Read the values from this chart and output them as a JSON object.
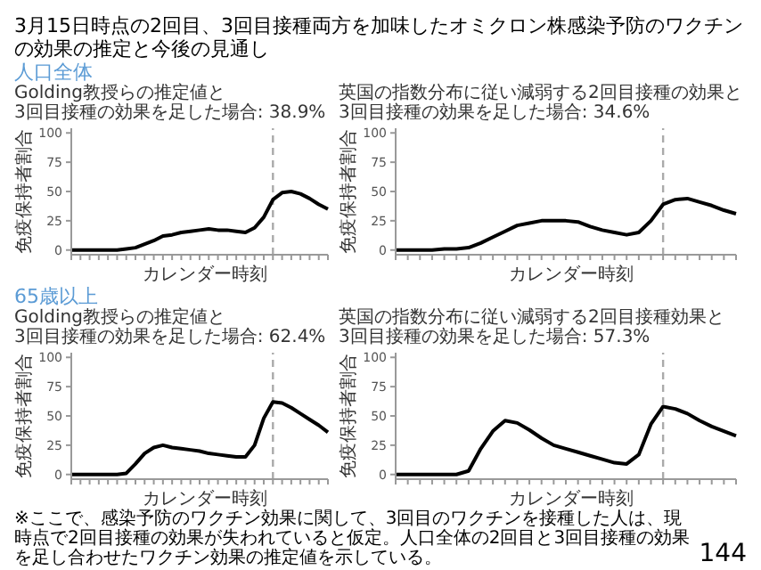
{
  "chart_data": [
    {
      "type": "other",
      "title": "3月15日時点の2回目、3回目接種両方を加味したオミクロン株感染予防のワクチンの効果の推定と今後の見通し",
      "annotations": [
        "人口全体",
        "65歳以上",
        "※ここで、感染予防のワクチン効果に関して、3回目のワクチンを接種した人は、現時点で2回目接種の効果が失われていると仮定。人口全体の2回目と3回目接種の効果を足し合わせたワクチン効果の推定値を示している。",
        "144"
      ]
    },
    {
      "type": "line",
      "title": "Golding教授らの推定値と\n3回目接種の効果を足した場合: 38.9%",
      "xlabel": "カレンダー時刻",
      "ylabel": "免疫保持者割合",
      "ylim": [
        -4,
        104
      ],
      "yticks": [
        0,
        25,
        50,
        75,
        100
      ],
      "categories": [
        null,
        null,
        null,
        null,
        null,
        null,
        null,
        null,
        null,
        null,
        null,
        null,
        null,
        null,
        null,
        null,
        null,
        null,
        null,
        null,
        null,
        null,
        null,
        null,
        null,
        null,
        null,
        null,
        null
      ],
      "series": [
        {
          "color": "#000000",
          "values": [
            0,
            0,
            0,
            0,
            0,
            0,
            1,
            2,
            5,
            8,
            12,
            13,
            15,
            16,
            17,
            18,
            17,
            17,
            16,
            15,
            19,
            28,
            43,
            49,
            50,
            48,
            44,
            39,
            35
          ]
        }
      ]
    },
    {
      "type": "line",
      "title": "英国の指数分布に従い減弱する2回目接種の効果と\n3回目接種の効果を足した場合: 34.6%",
      "xlabel": "カレンダー時刻",
      "ylabel": "免疫保持者割合",
      "ylim": [
        -4,
        104
      ],
      "yticks": [
        0,
        25,
        50,
        75,
        100
      ],
      "categories": [
        null,
        null,
        null,
        null,
        null,
        null,
        null,
        null,
        null,
        null,
        null,
        null,
        null,
        null,
        null,
        null,
        null,
        null,
        null,
        null,
        null,
        null,
        null,
        null,
        null,
        null,
        null,
        null,
        null
      ],
      "series": [
        {
          "color": "#000000",
          "values": [
            0,
            0,
            0,
            0,
            1,
            1,
            2,
            6,
            11,
            16,
            21,
            23,
            25,
            25,
            25,
            24,
            20,
            17,
            15,
            13,
            15,
            25,
            39,
            43,
            44,
            41,
            38,
            34,
            31
          ]
        }
      ]
    },
    {
      "type": "line",
      "title": "Golding教授らの推定値と\n3回目接種の効果を足した場合: 62.4%",
      "xlabel": "カレンダー時刻",
      "ylabel": "免疫保持者割合",
      "ylim": [
        -4,
        104
      ],
      "yticks": [
        0,
        25,
        50,
        75,
        100
      ],
      "categories": [
        null,
        null,
        null,
        null,
        null,
        null,
        null,
        null,
        null,
        null,
        null,
        null,
        null,
        null,
        null,
        null,
        null,
        null,
        null,
        null,
        null,
        null,
        null,
        null,
        null,
        null,
        null,
        null,
        null
      ],
      "series": [
        {
          "color": "#000000",
          "values": [
            0,
            0,
            0,
            0,
            0,
            0,
            1,
            9,
            18,
            23,
            25,
            23,
            22,
            21,
            20,
            18,
            17,
            16,
            15,
            15,
            25,
            48,
            62,
            61,
            57,
            52,
            47,
            42,
            36
          ]
        }
      ]
    },
    {
      "type": "line",
      "title": "英国の指数分布に従い減弱する2回目接種効果と\n3回目接種の効果を足した場合: 57.3%",
      "xlabel": "カレンダー時刻",
      "ylabel": "免疫保持者割合",
      "ylim": [
        -4,
        104
      ],
      "yticks": [
        0,
        25,
        50,
        75,
        100
      ],
      "categories": [
        null,
        null,
        null,
        null,
        null,
        null,
        null,
        null,
        null,
        null,
        null,
        null,
        null,
        null,
        null,
        null,
        null,
        null,
        null,
        null,
        null,
        null,
        null,
        null,
        null,
        null,
        null,
        null,
        null
      ],
      "series": [
        {
          "color": "#000000",
          "values": [
            0,
            0,
            0,
            0,
            0,
            0,
            3,
            22,
            37,
            46,
            44,
            38,
            31,
            25,
            22,
            19,
            16,
            13,
            10,
            9,
            17,
            43,
            58,
            56,
            52,
            46,
            41,
            37,
            33
          ]
        }
      ]
    }
  ]
}
